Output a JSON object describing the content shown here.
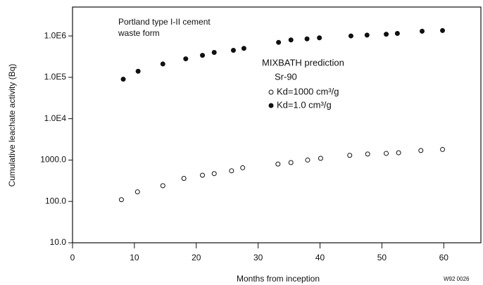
{
  "chart_data": {
    "type": "scatter",
    "x_label": "Months from inception",
    "y_label": "Cumulative leachate activity (Bq)",
    "annotations": [
      "Portland type I-II cement",
      "waste form",
      "MIXBATH prediction",
      "Sr-90",
      "W92 0026"
    ],
    "xlim": [
      0,
      66
    ],
    "xticks": [
      0,
      10,
      20,
      30,
      40,
      50,
      60
    ],
    "ylim": [
      10,
      5000000
    ],
    "log_y": true,
    "yticks": [
      {
        "value": 10,
        "label": "10.0"
      },
      {
        "value": 100,
        "label": "100.0"
      },
      {
        "value": 1000,
        "label": "1000.0"
      },
      {
        "value": 10000,
        "label": "1.0E4"
      },
      {
        "value": 100000,
        "label": "1.0E5"
      },
      {
        "value": 1000000,
        "label": "1.0E6"
      }
    ],
    "color": "#111111",
    "series": [
      {
        "name": "Kd=1000 cm³/g",
        "marker": "open",
        "x": [
          7.9,
          10.5,
          14.6,
          18,
          21,
          22.9,
          25.7,
          27.5,
          33.2,
          35.3,
          38,
          40.1,
          44.8,
          47.7,
          50.7,
          52.7,
          56.3,
          59.8
        ],
        "values": [
          110,
          170,
          240,
          360,
          430,
          470,
          550,
          650,
          800,
          870,
          1000,
          1100,
          1300,
          1400,
          1450,
          1500,
          1700,
          1800
        ]
      },
      {
        "name": "Kd=1.0 cm³/g",
        "marker": "filled",
        "x": [
          8.2,
          10.6,
          14.6,
          18.3,
          21,
          22.9,
          26,
          27.7,
          33.3,
          35.3,
          37.9,
          39.9,
          45,
          47.6,
          50.7,
          52.5,
          56.5,
          59.8
        ],
        "values": [
          90000,
          140000,
          210000,
          280000,
          340000,
          400000,
          450000,
          500000,
          700000,
          800000,
          850000,
          900000,
          1000000,
          1050000,
          1100000,
          1150000,
          1300000,
          1350000
        ]
      }
    ]
  }
}
